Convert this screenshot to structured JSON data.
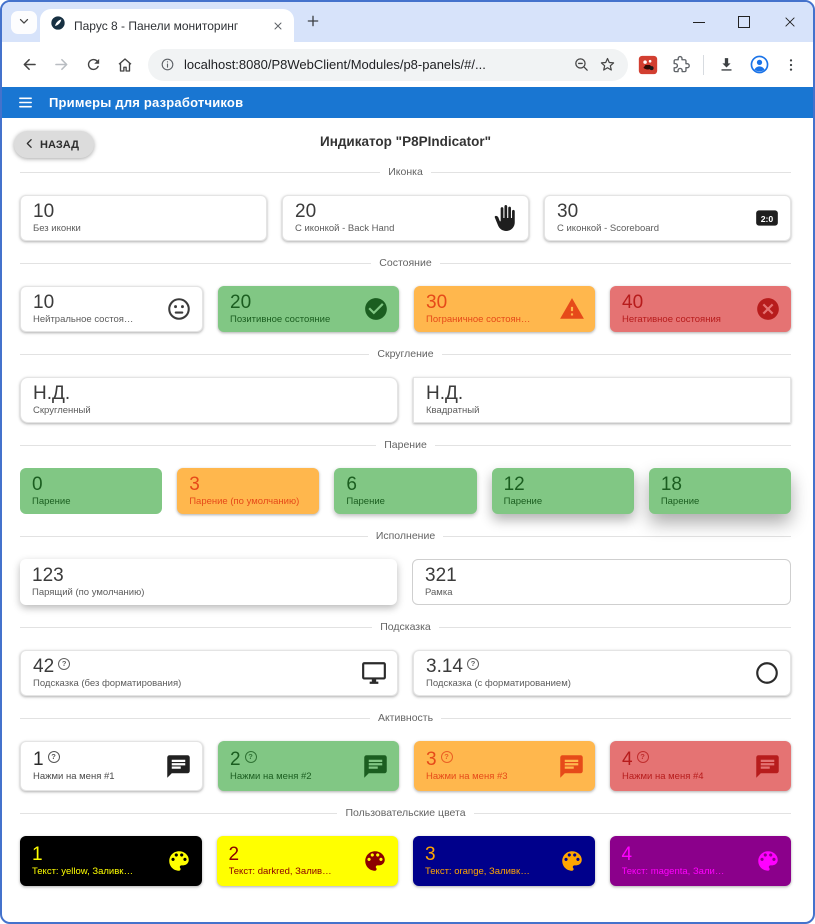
{
  "browser": {
    "tab_title": "Парус 8 - Панели мониторинг",
    "url": "localhost:8080/P8WebClient/Modules/p8-panels/#/..."
  },
  "app_bar": {
    "title": "Примеры для разработчиков"
  },
  "page": {
    "back_label": "НАЗАД",
    "title": "Индикатор \"P8PIndicator\""
  },
  "colors": {
    "accent_blue": "#1976d2",
    "positive_bg": "#81c784",
    "positive_fg": "#1b5e20",
    "warning_bg": "#ffb74d",
    "warning_fg": "#e64a19",
    "negative_bg": "#e57373",
    "negative_fg": "#b71c1c"
  },
  "sections": [
    {
      "title": "Иконка",
      "cards": [
        {
          "value": "10",
          "label": "Без иконки",
          "bg": "#ffffff",
          "fg": "#3b3b3b",
          "label_fg": "#5c5c5c",
          "border": "#e4e4e4",
          "shadow": "xs",
          "radius": 6,
          "clickable": false
        },
        {
          "value": "20",
          "label": "С иконкой - Back Hand",
          "bg": "#ffffff",
          "fg": "#3b3b3b",
          "label_fg": "#5c5c5c",
          "border": "#e4e4e4",
          "shadow": "xs",
          "radius": 6,
          "icon": "back-hand",
          "icon_color": "#1e1e1e",
          "clickable": false
        },
        {
          "value": "30",
          "label": "С иконкой - Scoreboard",
          "bg": "#ffffff",
          "fg": "#3b3b3b",
          "label_fg": "#5c5c5c",
          "border": "#e4e4e4",
          "shadow": "xs",
          "radius": 6,
          "icon": "scoreboard",
          "icon_color": "#1e1e1e",
          "clickable": false
        }
      ]
    },
    {
      "title": "Состояние",
      "cards": [
        {
          "value": "10",
          "label": "Нейтральное состояние",
          "bg": "#ffffff",
          "fg": "#3b3b3b",
          "label_fg": "#5c5c5c",
          "border": "#e4e4e4",
          "shadow": "xs",
          "radius": 6,
          "icon": "neutral-face",
          "icon_color": "#3b3b3b",
          "clickable": false
        },
        {
          "value": "20",
          "label": "Позитивное состояние",
          "bg": "#81c784",
          "fg": "#1b5e20",
          "label_fg": "#1b5e20",
          "shadow": "xs",
          "radius": 6,
          "icon": "check-circle",
          "icon_color": "#1b5e20",
          "clickable": false
        },
        {
          "value": "30",
          "label": "Пограничное состояние",
          "bg": "#ffb74d",
          "fg": "#e64a19",
          "label_fg": "#e64a19",
          "shadow": "xs",
          "radius": 6,
          "icon": "warning",
          "icon_color": "#e64a19",
          "clickable": false
        },
        {
          "value": "40",
          "label": "Негативное состояния",
          "bg": "#e57373",
          "fg": "#b71c1c",
          "label_fg": "#b71c1c",
          "shadow": "xs",
          "radius": 6,
          "icon": "cancel",
          "icon_color": "#b71c1c",
          "clickable": false
        }
      ]
    },
    {
      "title": "Скругление",
      "cards": [
        {
          "value": "Н.Д.",
          "label": "Скругленный",
          "bg": "#ffffff",
          "fg": "#3b3b3b",
          "label_fg": "#5c5c5c",
          "border": "#e4e4e4",
          "shadow": "xs",
          "radius": 8,
          "clickable": false
        },
        {
          "value": "Н.Д.",
          "label": "Квадратный",
          "bg": "#ffffff",
          "fg": "#3b3b3b",
          "label_fg": "#5c5c5c",
          "border": "#e4e4e4",
          "shadow": "xs",
          "radius": 0,
          "clickable": false
        }
      ]
    },
    {
      "title": "Парение",
      "cards": [
        {
          "value": "0",
          "label": "Парение",
          "bg": "#81c784",
          "fg": "#1b5e20",
          "label_fg": "#1b5e20",
          "shadow": "none",
          "radius": 6,
          "clickable": false
        },
        {
          "value": "3",
          "label": "Парение (по умолчанию)",
          "bg": "#ffb74d",
          "fg": "#e64a19",
          "label_fg": "#e64a19",
          "shadow": "xs",
          "radius": 6,
          "clickable": false
        },
        {
          "value": "6",
          "label": "Парение",
          "bg": "#81c784",
          "fg": "#1b5e20",
          "label_fg": "#1b5e20",
          "shadow": "sm",
          "radius": 6,
          "clickable": false
        },
        {
          "value": "12",
          "label": "Парение",
          "bg": "#81c784",
          "fg": "#1b5e20",
          "label_fg": "#1b5e20",
          "shadow": "lg",
          "radius": 6,
          "clickable": false
        },
        {
          "value": "18",
          "label": "Парение",
          "bg": "#81c784",
          "fg": "#1b5e20",
          "label_fg": "#1b5e20",
          "shadow": "xl",
          "radius": 6,
          "clickable": false
        }
      ]
    },
    {
      "title": "Исполнение",
      "cards": [
        {
          "value": "123",
          "label": "Парящий (по умолчанию)",
          "bg": "#ffffff",
          "fg": "#3b3b3b",
          "label_fg": "#5c5c5c",
          "shadow": "md",
          "radius": 6,
          "clickable": false
        },
        {
          "value": "321",
          "label": "Рамка",
          "bg": "#ffffff",
          "fg": "#3b3b3b",
          "label_fg": "#5c5c5c",
          "border": "#cfcfcf",
          "shadow": "none",
          "radius": 6,
          "clickable": false
        }
      ]
    },
    {
      "title": "Подсказка",
      "cards": [
        {
          "value": "42",
          "help": true,
          "label": "Подсказка (без форматирования)",
          "bg": "#ffffff",
          "fg": "#3b3b3b",
          "label_fg": "#5c5c5c",
          "border": "#e4e4e4",
          "shadow": "xs",
          "radius": 6,
          "icon": "monitor",
          "icon_color": "#2b2b2b",
          "clickable": false
        },
        {
          "value": "3.14",
          "help": true,
          "label": "Подсказка (с форматированием)",
          "bg": "#ffffff",
          "fg": "#3b3b3b",
          "label_fg": "#5c5c5c",
          "border": "#e4e4e4",
          "shadow": "xs",
          "radius": 6,
          "icon": "circle-outline",
          "icon_color": "#2b2b2b",
          "clickable": false
        }
      ]
    },
    {
      "title": "Активность",
      "tall": true,
      "cards": [
        {
          "value": "1",
          "help": true,
          "label": "Нажми на меня #1",
          "bg": "#ffffff",
          "fg": "#2b2b2b",
          "label_fg": "#4a4a4a",
          "border": "#e4e4e4",
          "shadow": "xs",
          "radius": 6,
          "icon": "chat",
          "icon_color": "#212121",
          "clickable": true
        },
        {
          "value": "2",
          "help": true,
          "label": "Нажми на меня #2",
          "bg": "#81c784",
          "fg": "#1b5e20",
          "label_fg": "#1b5e20",
          "shadow": "xs",
          "radius": 6,
          "icon": "chat",
          "icon_color": "#1b5e20",
          "clickable": true
        },
        {
          "value": "3",
          "help": true,
          "label": "Нажми на меня #3",
          "bg": "#ffb74d",
          "fg": "#e64a19",
          "label_fg": "#e64a19",
          "shadow": "xs",
          "radius": 6,
          "icon": "chat",
          "icon_color": "#e64a19",
          "clickable": true
        },
        {
          "value": "4",
          "help": true,
          "label": "Нажми на меня #4",
          "bg": "#e57373",
          "fg": "#b71c1c",
          "label_fg": "#b71c1c",
          "shadow": "xs",
          "radius": 6,
          "icon": "chat",
          "icon_color": "#b71c1c",
          "clickable": true
        }
      ]
    },
    {
      "title": "Пользовательские цвета",
      "tall": true,
      "cards": [
        {
          "value": "1",
          "label": "Текст: yellow, Заливка: black",
          "bg": "#000000",
          "fg": "#ffff00",
          "label_fg": "#ffff00",
          "shadow": "xs",
          "radius": 6,
          "icon": "palette",
          "icon_color": "#ffff00",
          "clickable": false
        },
        {
          "value": "2",
          "label": "Текст: darkred, Заливка: yellow",
          "bg": "#ffff00",
          "fg": "#8b0000",
          "label_fg": "#8b0000",
          "shadow": "xs",
          "radius": 6,
          "icon": "palette",
          "icon_color": "#8b0000",
          "clickable": false
        },
        {
          "value": "3",
          "label": "Текст: orange, Заливка: darkblue",
          "bg": "#00008b",
          "fg": "#ffa500",
          "label_fg": "#ffa500",
          "shadow": "xs",
          "radius": 6,
          "icon": "palette",
          "icon_color": "#ffa500",
          "clickable": false
        },
        {
          "value": "4",
          "label": "Текст: magenta, Заливка: darkmagenta",
          "bg": "#8b008b",
          "fg": "#ff00ff",
          "label_fg": "#ff00ff",
          "shadow": "xs",
          "radius": 6,
          "icon": "palette",
          "icon_color": "#ff00ff",
          "clickable": false
        }
      ]
    }
  ]
}
